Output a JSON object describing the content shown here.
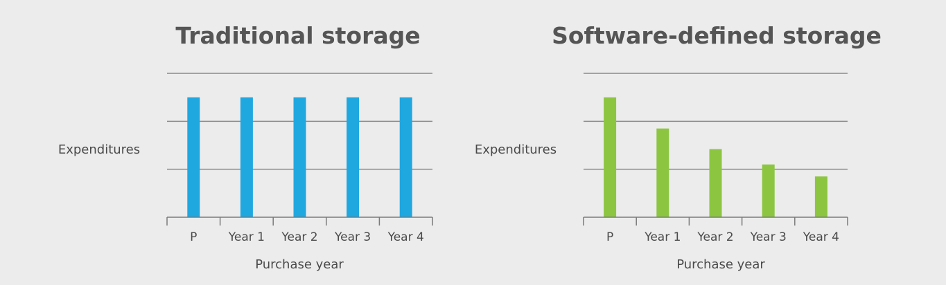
{
  "chart_data": [
    {
      "type": "bar",
      "title": "Traditional storage",
      "xlabel": "Purchase year",
      "ylabel": "Expenditures",
      "categories": [
        "P",
        "Year 1",
        "Year 2",
        "Year 3",
        "Year 4"
      ],
      "values": [
        2.5,
        2.5,
        2.5,
        2.5,
        2.5
      ],
      "ylim": [
        0,
        3
      ],
      "grid": true,
      "color": "#1fa7e0"
    },
    {
      "type": "bar",
      "title": "Software-defined storage",
      "xlabel": "Purchase year",
      "ylabel": "Expenditures",
      "categories": [
        "P",
        "Year 1",
        "Year 2",
        "Year 3",
        "Year 4"
      ],
      "values": [
        2.5,
        1.85,
        1.42,
        1.1,
        0.85
      ],
      "ylim": [
        0,
        3
      ],
      "grid": true,
      "color": "#8cc641"
    }
  ]
}
